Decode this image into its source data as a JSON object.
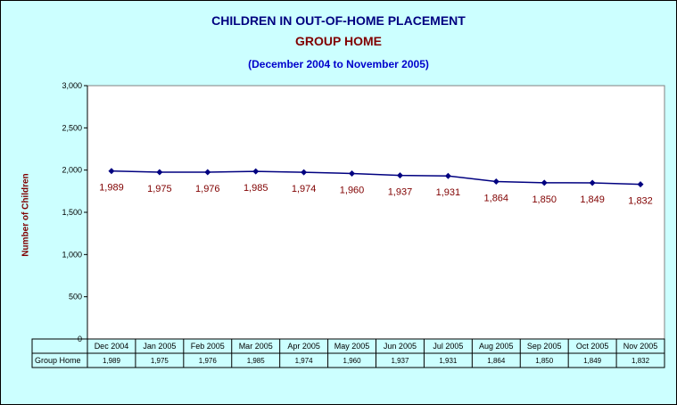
{
  "chart_data": {
    "type": "line",
    "title": "CHILDREN IN OUT-OF-HOME PLACEMENT",
    "subtitle": "GROUP HOME",
    "date_range": "(December 2004 to November 2005)",
    "ylabel": "Number of Children",
    "xlabel": "",
    "ylim": [
      0,
      3000
    ],
    "yticks": [
      "0",
      "500",
      "1,000",
      "1,500",
      "2,000",
      "2,500",
      "3,000"
    ],
    "ytick_values": [
      0,
      500,
      1000,
      1500,
      2000,
      2500,
      3000
    ],
    "grid": false,
    "legend": "data table below axis",
    "categories": [
      "Dec 2004",
      "Jan 2005",
      "Feb 2005",
      "Mar 2005",
      "Apr 2005",
      "May 2005",
      "Jun 2005",
      "Jul 2005",
      "Aug 2005",
      "Sep 2005",
      "Oct 2005",
      "Nov 2005"
    ],
    "series": [
      {
        "name": "Group Home",
        "values": [
          1989,
          1975,
          1976,
          1985,
          1974,
          1960,
          1937,
          1931,
          1864,
          1850,
          1849,
          1832
        ],
        "labels": [
          "1,989",
          "1,975",
          "1,976",
          "1,985",
          "1,974",
          "1,960",
          "1,937",
          "1,931",
          "1,864",
          "1,850",
          "1,849",
          "1,832"
        ],
        "color": "#000080"
      }
    ],
    "label_color": "#800000",
    "background": "#ccffff",
    "plot_background": "#ffffff"
  }
}
